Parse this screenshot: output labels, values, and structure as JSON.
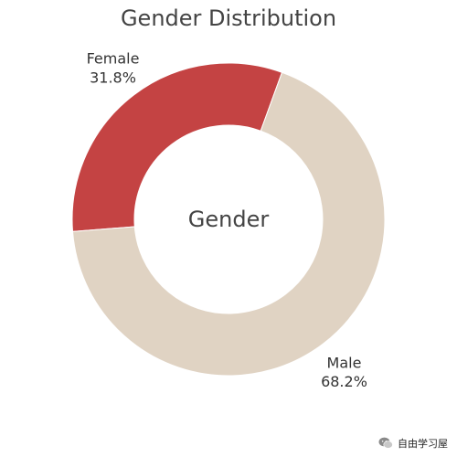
{
  "chart_data": {
    "type": "pie",
    "title": "Gender Distribution",
    "hole": true,
    "center_label": "Gender",
    "slices": [
      {
        "label": "Female",
        "percent": 31.8,
        "percent_text": "31.8%",
        "color": "#C44343"
      },
      {
        "label": "Male",
        "percent": 68.2,
        "percent_text": "68.2%",
        "color": "#E0D3C3"
      }
    ],
    "start_angle_deg": 20,
    "direction": "counterclockwise"
  },
  "watermark": {
    "text": "自由学习屋",
    "icon": "wechat-icon"
  }
}
